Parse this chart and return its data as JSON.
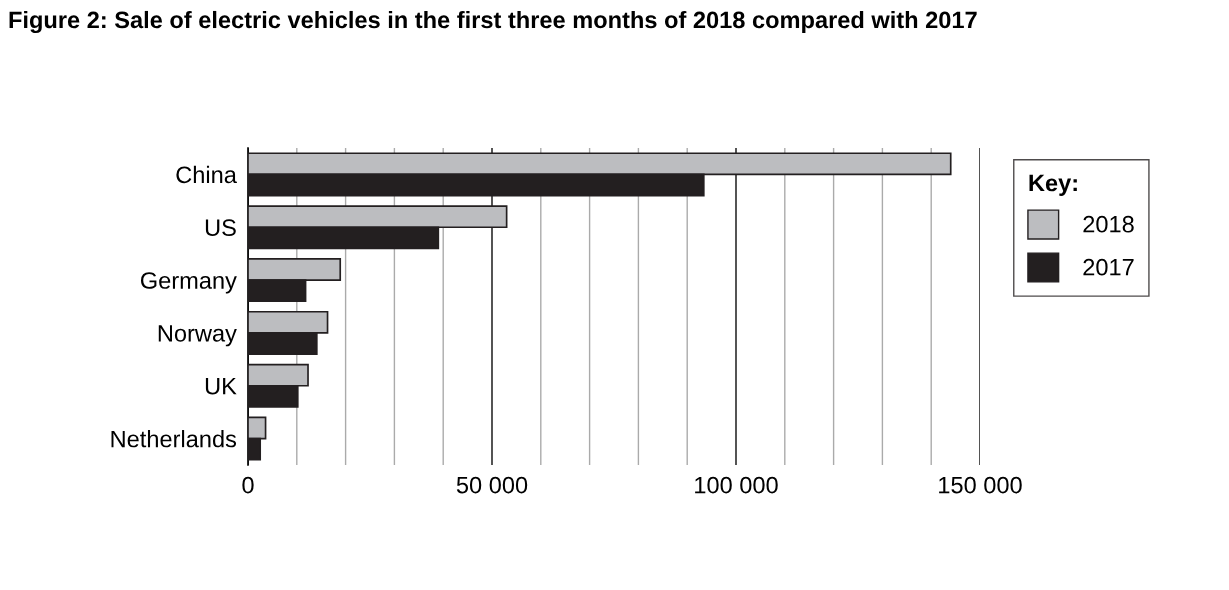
{
  "chart_data": {
    "type": "bar",
    "orientation": "horizontal",
    "title": "Figure 2: Sale of electric vehicles in the first three months of 2018 compared with 2017",
    "legend_title": "Key:",
    "categories": [
      "China",
      "US",
      "Germany",
      "Norway",
      "UK",
      "Netherlands"
    ],
    "series": [
      {
        "name": "2018",
        "color": "#bcbdc0",
        "values": [
          144000,
          53000,
          18900,
          16300,
          12300,
          3600
        ]
      },
      {
        "name": "2017",
        "color": "#231f20",
        "values": [
          93400,
          39000,
          11800,
          14100,
          10200,
          2500
        ]
      }
    ],
    "xlim": [
      0,
      150000
    ],
    "xticks": [
      0,
      {
        "value": 10000,
        "label": null
      },
      {
        "value": 20000,
        "label": null
      },
      {
        "value": 30000,
        "label": null
      },
      {
        "value": 40000,
        "label": null
      },
      {
        "value": 50000,
        "label": "50 000"
      },
      {
        "value": 60000,
        "label": null
      },
      {
        "value": 70000,
        "label": null
      },
      {
        "value": 80000,
        "label": null
      },
      {
        "value": 90000,
        "label": null
      },
      {
        "value": 100000,
        "label": "100 000"
      },
      {
        "value": 110000,
        "label": null
      },
      {
        "value": 120000,
        "label": null
      },
      {
        "value": 130000,
        "label": null
      },
      {
        "value": 140000,
        "label": null
      },
      {
        "value": 150000,
        "label": "150 000"
      }
    ],
    "grid": "x",
    "legend": "right"
  }
}
